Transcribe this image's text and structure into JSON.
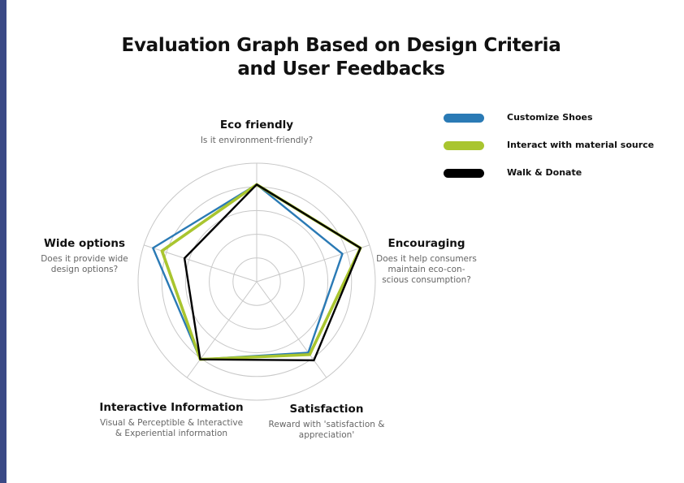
{
  "chart_data": {
    "type": "radar",
    "title_lines": [
      "Evaluation Graph Based on Design Criteria",
      "and User Feedbacks"
    ],
    "axes": [
      {
        "key": "eco",
        "label": "Eco friendly",
        "description": "Is it environment-friendly?"
      },
      {
        "key": "encouraging",
        "label": "Encouraging",
        "description": "Does it help consumers maintain eco-con-scious consumption?"
      },
      {
        "key": "satisfaction",
        "label": "Satisfaction",
        "description": "Reward with 'satisfaction & appreciation'"
      },
      {
        "key": "interactive",
        "label": "Interactive Information",
        "description": "Visual & Perceptible & Interactive & Experiential information"
      },
      {
        "key": "wide",
        "label": "Wide options",
        "description": "Does it provide wide design options?"
      }
    ],
    "rlim": [
      0,
      5
    ],
    "rings": 5,
    "grid": true,
    "legend_position": "right",
    "series": [
      {
        "name": "Customize Shoes",
        "color": "#2a7ab5",
        "values": [
          4.1,
          3.8,
          3.7,
          4.05,
          4.6
        ]
      },
      {
        "name": "Interact with material source",
        "color": "#a9c52f",
        "values": [
          4.1,
          4.6,
          3.8,
          4.05,
          4.2
        ]
      },
      {
        "name": "Walk & Donate",
        "color": "#000000",
        "values": [
          4.1,
          4.6,
          4.1,
          4.05,
          3.2
        ]
      }
    ]
  }
}
